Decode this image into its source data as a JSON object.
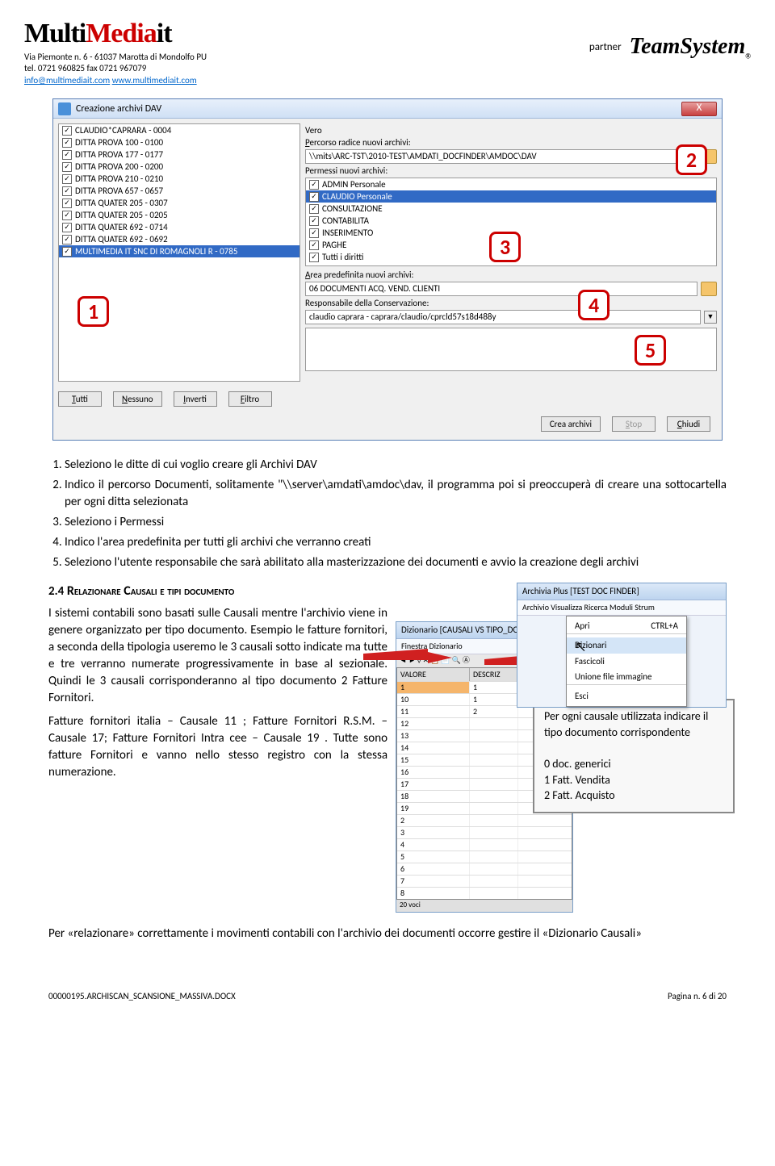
{
  "header": {
    "logo_multi": "Multi",
    "logo_media": "Media",
    "logo_it": "it",
    "address": "Via Piemonte n. 6 - 61037 Marotta di Mondolfo PU",
    "tel": "tel. 0721 960825 fax 0721 967079",
    "email": "info@multimediait.com",
    "web": "www.multimediait.com",
    "partner_label": "partner",
    "teamsystem": "TeamSystem",
    "ts_reg": "®"
  },
  "dialog": {
    "title": "Creazione archivi DAV",
    "close_x": "X",
    "left_items": [
      "CLAUDIO*CAPRARA - 0004",
      "DITTA PROVA 100 - 0100",
      "DITTA PROVA 177 - 0177",
      "DITTA PROVA 200 - 0200",
      "DITTA PROVA 210 - 0210",
      "DITTA PROVA 657 - 0657",
      "DITTA QUATER 205 - 0307",
      "DITTA QUATER 205 - 0205",
      "DITTA QUATER 692 - 0714",
      "DITTA QUATER 692 - 0692",
      "MULTIMEDIA IT SNC DI ROMAGNOLI R - 0785"
    ],
    "vero": "Vero",
    "percorso_label": "Percorso radice nuovi archivi:",
    "percorso_value": "\\\\mits\\ARC-TST\\2010-TEST\\AMDATI_DOCFINDER\\AMDOC\\DAV",
    "permessi_label": "Permessi nuovi archivi:",
    "permessi": [
      "ADMIN Personale",
      "CLAUDIO Personale",
      "CONSULTAZIONE",
      "CONTABILITA",
      "INSERIMENTO",
      "PAGHE",
      "Tutti i diritti"
    ],
    "area_label": "Area predefinita nuovi archivi:",
    "area_value": "06 DOCUMENTI ACQ. VEND. CLIENTI",
    "resp_label": "Responsabile della Conservazione:",
    "resp_value": "claudio caprara - caprara/claudio/cprcld57s18d488y",
    "btn_tutti": "Tutti",
    "btn_nessuno": "Nessuno",
    "btn_inverti": "Inverti",
    "btn_filtro": "Filtro",
    "btn_crea": "Crea archivi",
    "btn_stop": "Stop",
    "btn_chiudi": "Chiudi",
    "callout_1": "1",
    "callout_2": "2",
    "callout_3": "3",
    "callout_4": "4",
    "callout_5": "5"
  },
  "list": {
    "i1": "Seleziono le ditte di cui voglio creare gli Archivi DAV",
    "i2": "Indico il percorso Documenti, solitamente \"\\\\server\\amdati\\amdoc\\dav, il programma poi si preoccuperà di creare una sottocartella per ogni ditta selezionata",
    "i3": "Seleziono i Permessi",
    "i4": "Indico l'area predefinita per tutti gli archivi che verranno creati",
    "i5": "Seleziono l'utente responsabile che sarà abilitato alla masterizzazione dei documenti e avvio la creazione degli archivi"
  },
  "section": {
    "num": "2.4",
    "title_caps": "Relazionare Causali e tipi documento",
    "p1": "I sistemi contabili sono basati sulle Causali mentre l'archivio viene in genere organizzato per tipo documento. Esempio le fatture fornitori, a seconda della tipologia useremo le 3 causali sotto indicate ma tutte e tre verranno numerate progressivamente in base al sezionale. Quindi le 3 causali corrisponderanno al tipo documento 2 Fatture Fornitori.",
    "p2": "Fatture fornitori italia – Causale 11 ; Fatture Fornitori R.S.M. – Causale 17; Fatture Fornitori Intra cee – Causale 19 .  Tutte sono fatture Fornitori e vanno nello stesso registro con la stessa numerazione.",
    "p3": "Per «relazionare» correttamente i movimenti contabili con l'archivio dei documenti occorre gestire il  «Dizionario Causali»"
  },
  "app1": {
    "title": "Archivia Plus [TEST DOC FINDER]",
    "menu": "Archivio   Visualizza   Ricerca   Moduli   Strum",
    "m_apri": "Apri",
    "m_apri_sc": "CTRL+A",
    "m_diz": "Dizionari",
    "m_fasc": "Fascicoli",
    "m_union": "Unione file immagine",
    "m_esci": "Esci"
  },
  "app2": {
    "title": "Dizionario [CAUSALI VS TIPO_DOC_F]",
    "menu": "Finestra   Dizionario",
    "col_val": "VALORE",
    "col_desc": "DESCRIZ",
    "rows_v": [
      "1",
      "10",
      "11",
      "12",
      "13",
      "14",
      "15",
      "16",
      "17",
      "18",
      "19",
      "2",
      "3",
      "4",
      "5",
      "6",
      "7",
      "8"
    ],
    "rows_d": [
      "1",
      "1",
      "2",
      "",
      "",
      "",
      "",
      "",
      "",
      "",
      "",
      "",
      "",
      "",
      "",
      "",
      "",
      ""
    ],
    "footer": "20 voci"
  },
  "note": {
    "l1": "Per ogni causale utilizzata indicare il tipo documento corrispondente",
    "l2": "0 doc. generici",
    "l3": "1 Fatt. Vendita",
    "l4": "2 Fatt. Acquisto"
  },
  "footer": {
    "left": "00000195.ARCHISCAN_SCANSIONE_MASSIVA.DOCX",
    "right": "Pagina n. 6 di 20"
  }
}
